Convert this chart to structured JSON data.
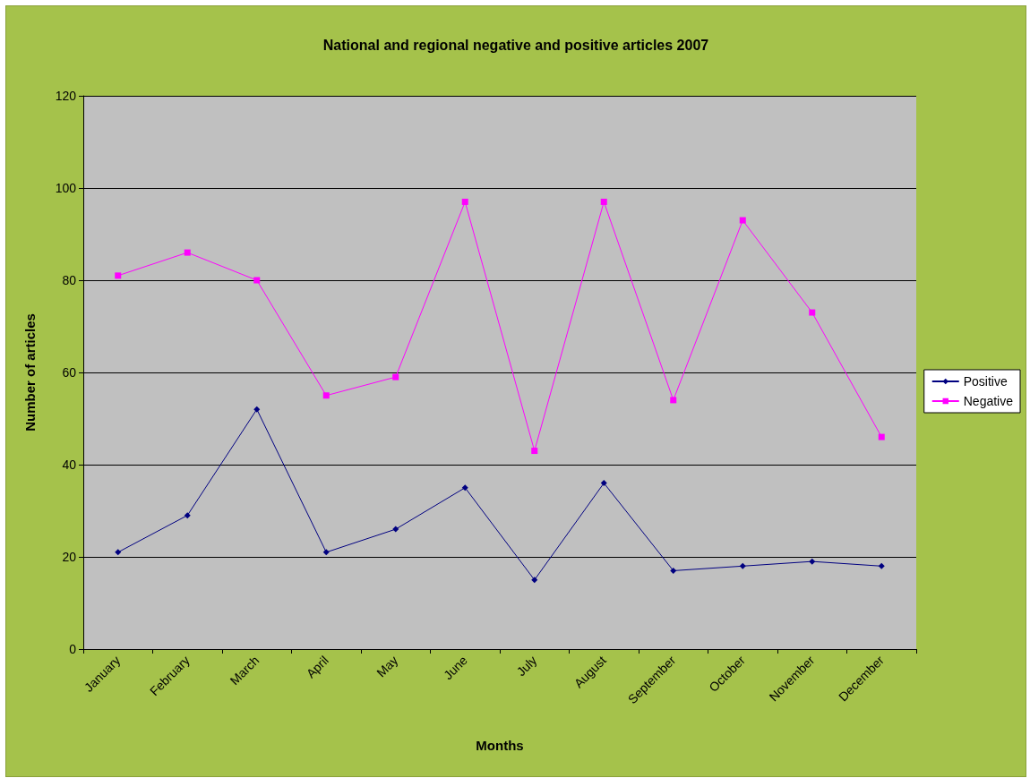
{
  "chart_data": {
    "type": "line",
    "title": "National and regional negative and positive articles 2007",
    "xlabel": "Months",
    "ylabel": "Number of articles",
    "categories": [
      "January",
      "February",
      "March",
      "April",
      "May",
      "June",
      "July",
      "August",
      "September",
      "October",
      "November",
      "December"
    ],
    "series": [
      {
        "name": "Positive",
        "color": "#000080",
        "marker": "diamond",
        "values": [
          21,
          29,
          52,
          21,
          26,
          35,
          15,
          36,
          17,
          18,
          19,
          18
        ]
      },
      {
        "name": "Negative",
        "color": "#ff00ff",
        "marker": "square",
        "values": [
          81,
          86,
          80,
          55,
          59,
          97,
          43,
          97,
          54,
          93,
          73,
          46
        ]
      }
    ],
    "ylim": [
      0,
      120
    ],
    "yticks": [
      0,
      20,
      40,
      60,
      80,
      100,
      120
    ],
    "grid": "y",
    "legend": "right",
    "line_style": "solid"
  }
}
